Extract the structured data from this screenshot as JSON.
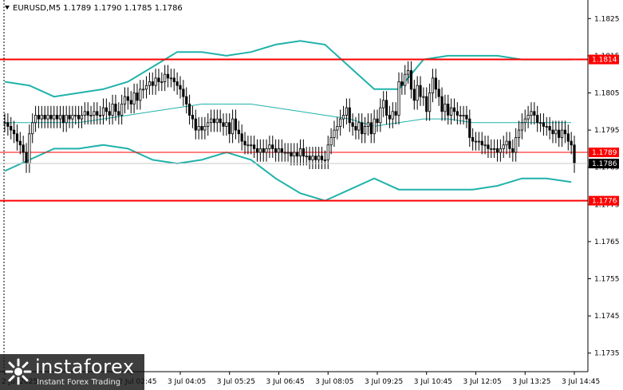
{
  "header": {
    "symbol_line": "EURUSD,M5  1.1789 1.1790 1.1785 1.1786",
    "menu_arrow": "triangle-down-icon"
  },
  "colors": {
    "background": "#ffffff",
    "candle": "#000000",
    "bands": "#20b2aa",
    "level_lines": "#ff0000",
    "price_flag_text": "#ffffff",
    "current_flag_bg": "#000000"
  },
  "logo": {
    "text": "instaforex",
    "subtitle": "Instant Forex Trading"
  },
  "chart_data": {
    "type": "candlestick",
    "symbol": "EURUSD",
    "timeframe": "M5",
    "ohlc_header": {
      "open": 1.1789,
      "high": 1.179,
      "low": 1.1785,
      "close": 1.1786
    },
    "ylim": [
      1.173,
      1.183
    ],
    "y_ticks": [
      "1.1825",
      "1.1815",
      "1.1805",
      "1.1795",
      "1.1785",
      "1.1775",
      "1.1765",
      "1.1755",
      "1.1745",
      "1.1735"
    ],
    "y_tick_values": [
      1.1825,
      1.1815,
      1.1805,
      1.1795,
      1.1785,
      1.1775,
      1.1765,
      1.1755,
      1.1745,
      1.1735
    ],
    "x_labels": [
      "2 Jul 2025",
      "2 Jul 02:45",
      "3 Jul 04:05",
      "3 Jul 05:25",
      "3 Jul 06:45",
      "3 Jul 08:05",
      "3 Jul 09:25",
      "3 Jul 10:45",
      "3 Jul 12:05",
      "3 Jul 13:25",
      "3 Jul 14:45"
    ],
    "x_label_index": [
      0,
      41,
      57,
      73,
      89,
      105,
      121,
      137,
      153,
      169,
      185
    ],
    "levels": [
      {
        "label": "1.1814",
        "value": 1.1814,
        "style": "thick"
      },
      {
        "label": "1.1789",
        "value": 1.1789,
        "style": "thin"
      },
      {
        "label": "1.1776",
        "value": 1.1776,
        "style": "thick"
      }
    ],
    "current_price": {
      "label": "1.1786",
      "value": 1.1786
    },
    "closes": [
      1.1797,
      1.1796,
      1.1795,
      1.1794,
      1.1792,
      1.1791,
      1.1789,
      1.1786,
      1.1794,
      1.1797,
      1.1799,
      1.1798,
      1.1799,
      1.1798,
      1.1799,
      1.1798,
      1.1799,
      1.1798,
      1.1799,
      1.1797,
      1.1799,
      1.1798,
      1.1799,
      1.1799,
      1.1798,
      1.1799,
      1.18,
      1.1799,
      1.1799,
      1.18,
      1.1799,
      1.1799,
      1.1801,
      1.18,
      1.1799,
      1.1802,
      1.18,
      1.1799,
      1.1802,
      1.1804,
      1.1803,
      1.1802,
      1.1805,
      1.1803,
      1.1806,
      1.1806,
      1.1807,
      1.1808,
      1.1807,
      1.1809,
      1.1808,
      1.1808,
      1.181,
      1.1809,
      1.1809,
      1.1808,
      1.1807,
      1.1806,
      1.1804,
      1.1802,
      1.1799,
      1.1798,
      1.1795,
      1.1796,
      1.1795,
      1.1796,
      1.1797,
      1.1798,
      1.1797,
      1.1798,
      1.1797,
      1.1796,
      1.1797,
      1.1794,
      1.1798,
      1.1795,
      1.1794,
      1.1792,
      1.1791,
      1.1791,
      1.1791,
      1.179,
      1.1789,
      1.179,
      1.1789,
      1.179,
      1.1791,
      1.179,
      1.1789,
      1.179,
      1.1789,
      1.1789,
      1.1789,
      1.1788,
      1.1789,
      1.1788,
      1.179,
      1.1788,
      1.1788,
      1.1787,
      1.1788,
      1.1787,
      1.1788,
      1.1787,
      1.1787,
      1.1791,
      1.1793,
      1.1795,
      1.1796,
      1.1798,
      1.1799,
      1.1801,
      1.1797,
      1.1796,
      1.1795,
      1.1797,
      1.1794,
      1.1796,
      1.1797,
      1.1794,
      1.1798,
      1.1797,
      1.1801,
      1.1803,
      1.1799,
      1.1798,
      1.18,
      1.1799,
      1.1808,
      1.1807,
      1.181,
      1.1811,
      1.1806,
      1.1803,
      1.1807,
      1.1804,
      1.1804,
      1.18,
      1.1805,
      1.1809,
      1.1806,
      1.1804,
      1.18,
      1.1802,
      1.1799,
      1.1801,
      1.18,
      1.1799,
      1.1799,
      1.1799,
      1.1798,
      1.1793,
      1.1792,
      1.1792,
      1.1792,
      1.1791,
      1.1791,
      1.179,
      1.179,
      1.179,
      1.1789,
      1.179,
      1.1791,
      1.1792,
      1.179,
      1.1789,
      1.1793,
      1.1795,
      1.1797,
      1.1798,
      1.1799,
      1.18,
      1.1799,
      1.1797,
      1.1797,
      1.1796,
      1.1796,
      1.1795,
      1.1794,
      1.1795,
      1.1793,
      1.1795,
      1.1794,
      1.1792,
      1.1791,
      1.1786
    ],
    "bollinger_upper": [
      [
        0,
        1.1808
      ],
      [
        8,
        1.1807
      ],
      [
        16,
        1.1804
      ],
      [
        24,
        1.1805
      ],
      [
        32,
        1.1806
      ],
      [
        40,
        1.1808
      ],
      [
        48,
        1.1812
      ],
      [
        56,
        1.1816
      ],
      [
        64,
        1.1816
      ],
      [
        72,
        1.1815
      ],
      [
        80,
        1.1816
      ],
      [
        88,
        1.1818
      ],
      [
        96,
        1.1819
      ],
      [
        104,
        1.1818
      ],
      [
        112,
        1.1812
      ],
      [
        120,
        1.1806
      ],
      [
        128,
        1.1806
      ],
      [
        136,
        1.1814
      ],
      [
        144,
        1.1815
      ],
      [
        152,
        1.1815
      ],
      [
        160,
        1.1815
      ],
      [
        168,
        1.1814
      ],
      [
        176,
        1.1814
      ],
      [
        184,
        1.1814
      ]
    ],
    "bollinger_middle": [
      [
        0,
        1.1797
      ],
      [
        8,
        1.1797
      ],
      [
        16,
        1.1797
      ],
      [
        24,
        1.1797
      ],
      [
        32,
        1.1798
      ],
      [
        40,
        1.1799
      ],
      [
        48,
        1.18
      ],
      [
        56,
        1.1801
      ],
      [
        64,
        1.1802
      ],
      [
        72,
        1.1802
      ],
      [
        80,
        1.1802
      ],
      [
        88,
        1.1801
      ],
      [
        96,
        1.18
      ],
      [
        104,
        1.1799
      ],
      [
        112,
        1.1798
      ],
      [
        120,
        1.1796
      ],
      [
        128,
        1.1797
      ],
      [
        136,
        1.1798
      ],
      [
        144,
        1.1798
      ],
      [
        152,
        1.1797
      ],
      [
        160,
        1.1797
      ],
      [
        168,
        1.1797
      ],
      [
        176,
        1.1797
      ],
      [
        184,
        1.1797
      ]
    ],
    "bollinger_lower": [
      [
        0,
        1.1784
      ],
      [
        8,
        1.1787
      ],
      [
        16,
        1.179
      ],
      [
        24,
        1.179
      ],
      [
        32,
        1.1791
      ],
      [
        40,
        1.179
      ],
      [
        48,
        1.1787
      ],
      [
        56,
        1.1786
      ],
      [
        64,
        1.1787
      ],
      [
        72,
        1.1789
      ],
      [
        80,
        1.1787
      ],
      [
        88,
        1.1782
      ],
      [
        96,
        1.1778
      ],
      [
        104,
        1.1776
      ],
      [
        112,
        1.1779
      ],
      [
        120,
        1.1782
      ],
      [
        128,
        1.1779
      ],
      [
        136,
        1.1779
      ],
      [
        144,
        1.1779
      ],
      [
        152,
        1.1779
      ],
      [
        160,
        1.178
      ],
      [
        168,
        1.1782
      ],
      [
        176,
        1.1782
      ],
      [
        184,
        1.1781
      ]
    ]
  }
}
